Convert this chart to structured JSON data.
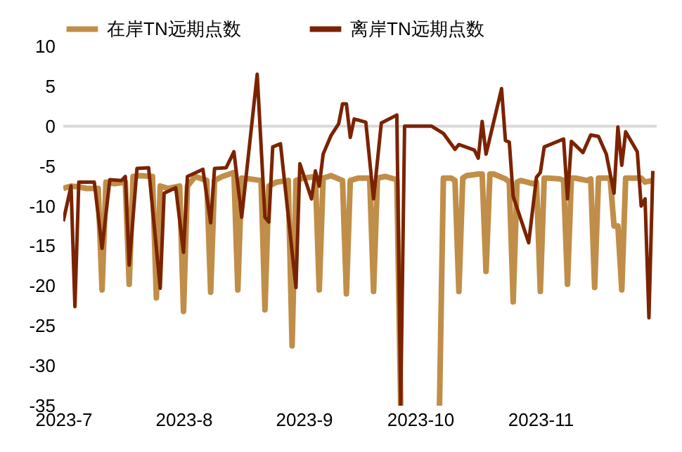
{
  "chart_data": {
    "type": "line",
    "legend": "top",
    "grid": false,
    "ylim": [
      -35,
      10
    ],
    "yticks": [
      10,
      5,
      0,
      -5,
      -10,
      -15,
      -20,
      -25,
      -30,
      -35
    ],
    "xlim": [
      "2023-07-01",
      "2023-12-01"
    ],
    "xticks": [
      {
        "value": "2023-07-01",
        "label": "2023-7"
      },
      {
        "value": "2023-08-01",
        "label": "2023-8"
      },
      {
        "value": "2023-09-01",
        "label": "2023-9"
      },
      {
        "value": "2023-10-01",
        "label": "2023-10"
      },
      {
        "value": "2023-11-01",
        "label": "2023-11"
      }
    ],
    "ref_lines": [
      {
        "axis": "y",
        "value": 0,
        "color": "#d9d9d9"
      }
    ],
    "series": [
      {
        "name": "在岸TN远期点数",
        "color": "#c08e48",
        "x": [
          "2023-07-01",
          "2023-07-03",
          "2023-07-05",
          "2023-07-07",
          "2023-07-10",
          "2023-07-11",
          "2023-07-12",
          "2023-07-14",
          "2023-07-17",
          "2023-07-18",
          "2023-07-19",
          "2023-07-21",
          "2023-07-24",
          "2023-07-25",
          "2023-07-26",
          "2023-07-28",
          "2023-07-31",
          "2023-08-01",
          "2023-08-02",
          "2023-08-04",
          "2023-08-07",
          "2023-08-08",
          "2023-08-09",
          "2023-08-11",
          "2023-08-14",
          "2023-08-15",
          "2023-08-16",
          "2023-08-18",
          "2023-08-21",
          "2023-08-22",
          "2023-08-23",
          "2023-08-25",
          "2023-08-28",
          "2023-08-29",
          "2023-08-30",
          "2023-09-01",
          "2023-09-04",
          "2023-09-05",
          "2023-09-06",
          "2023-09-08",
          "2023-09-11",
          "2023-09-12",
          "2023-09-13",
          "2023-09-15",
          "2023-09-18",
          "2023-09-19",
          "2023-09-20",
          "2023-09-22",
          "2023-09-25",
          "2023-09-26",
          "2023-09-27",
          "2023-10-06",
          "2023-10-07",
          "2023-10-09",
          "2023-10-10",
          "2023-10-11",
          "2023-10-12",
          "2023-10-13",
          "2023-10-16",
          "2023-10-17",
          "2023-10-18",
          "2023-10-19",
          "2023-10-20",
          "2023-10-23",
          "2023-10-24",
          "2023-10-25",
          "2023-10-26",
          "2023-10-27",
          "2023-10-30",
          "2023-10-31",
          "2023-11-01",
          "2023-11-02",
          "2023-11-03",
          "2023-11-06",
          "2023-11-07",
          "2023-11-08",
          "2023-11-09",
          "2023-11-10",
          "2023-11-13",
          "2023-11-14",
          "2023-11-15",
          "2023-11-16",
          "2023-11-17",
          "2023-11-19",
          "2023-11-20",
          "2023-11-21",
          "2023-11-22",
          "2023-11-23",
          "2023-11-27",
          "2023-11-28",
          "2023-11-30"
        ],
        "values": [
          -7.8,
          -7.5,
          -7.6,
          -7.8,
          -7.8,
          -20.5,
          -7,
          -7.2,
          -7,
          -19.8,
          -6.3,
          -6.2,
          -6.3,
          -21.5,
          -7.5,
          -7.8,
          -7.5,
          -23.2,
          -7.5,
          -6.3,
          -6.8,
          -20.8,
          -6.8,
          -6.3,
          -5.8,
          -20.5,
          -6.5,
          -6.6,
          -6.8,
          -23,
          -7.5,
          -7,
          -6.8,
          -27.5,
          -6.8,
          -6.5,
          -6.3,
          -20.5,
          -6.5,
          -6.2,
          -6.8,
          -21,
          -6.8,
          -6.5,
          -6.5,
          -20.7,
          -6.5,
          -6.3,
          -6.7,
          -35,
          null,
          -35,
          -6.5,
          -6.5,
          -6.8,
          -20.7,
          -6.5,
          -6.2,
          -6,
          -6,
          -18.2,
          -6,
          -6,
          -6.6,
          -7,
          -22,
          -7,
          -6.8,
          -7.2,
          -7,
          -20.7,
          -6.5,
          -6.5,
          -6.6,
          -6.8,
          -19.8,
          -6.5,
          -6.5,
          -6.8,
          -6.6,
          -20.2,
          -6.5,
          -6.5,
          -6.5,
          -12.5,
          -12.5,
          -20.5,
          -6.5,
          -6.5,
          -7,
          -6.8
        ]
      },
      {
        "name": "离岸TN远期点数",
        "color": "#7b2300",
        "x": [
          "2023-07-01",
          "2023-07-03",
          "2023-07-04",
          "2023-07-05",
          "2023-07-09",
          "2023-07-11",
          "2023-07-13",
          "2023-07-16",
          "2023-07-17",
          "2023-07-18",
          "2023-07-20",
          "2023-07-23",
          "2023-07-26",
          "2023-07-27",
          "2023-07-30",
          "2023-08-01",
          "2023-08-02",
          "2023-08-06",
          "2023-08-08",
          "2023-08-09",
          "2023-08-12",
          "2023-08-14",
          "2023-08-16",
          "2023-08-20",
          "2023-08-22",
          "2023-08-23",
          "2023-08-24",
          "2023-08-26",
          "2023-08-30",
          "2023-08-31",
          "2023-09-03",
          "2023-09-04",
          "2023-09-05",
          "2023-09-06",
          "2023-09-08",
          "2023-09-10",
          "2023-09-11",
          "2023-09-12",
          "2023-09-13",
          "2023-09-14",
          "2023-09-17",
          "2023-09-19",
          "2023-09-21",
          "2023-09-25",
          "2023-09-26",
          "2023-09-27",
          "2023-10-04",
          "2023-10-07",
          "2023-10-10",
          "2023-10-11",
          "2023-10-15",
          "2023-10-16",
          "2023-10-17",
          "2023-10-18",
          "2023-10-22",
          "2023-10-23",
          "2023-10-24",
          "2023-10-25",
          "2023-10-29",
          "2023-10-31",
          "2023-11-01",
          "2023-11-02",
          "2023-11-07",
          "2023-11-08",
          "2023-11-09",
          "2023-11-12",
          "2023-11-14",
          "2023-11-16",
          "2023-11-18",
          "2023-11-20",
          "2023-11-21",
          "2023-11-22",
          "2023-11-23",
          "2023-11-26",
          "2023-11-27",
          "2023-11-28",
          "2023-11-29",
          "2023-11-30"
        ],
        "values": [
          -11.9,
          -7.5,
          -22.6,
          -7,
          -7,
          -15.3,
          -6.7,
          -6.8,
          -6.3,
          -17.4,
          -5.3,
          -5.2,
          -20.3,
          -8.4,
          -7.7,
          -15.8,
          -6.3,
          -5.4,
          -12.1,
          -5.3,
          -5.2,
          -3.2,
          -11.4,
          6.5,
          -11.4,
          -12,
          -2.6,
          -2.2,
          -20.2,
          -4.7,
          -9.1,
          -5.6,
          -7.5,
          -3.5,
          -1.2,
          0.3,
          2.8,
          2.8,
          -1.4,
          0.9,
          0.5,
          -9.1,
          0.4,
          1.4,
          -35,
          0,
          0,
          -0.9,
          -2.9,
          -2.3,
          -3,
          -4,
          0.6,
          -3.5,
          4.7,
          -1.8,
          -2,
          -8.8,
          -14.6,
          -6.4,
          -5.8,
          -2.6,
          -1.6,
          -9.1,
          -1.9,
          -3.3,
          -1.1,
          -1.3,
          -3.5,
          -8.4,
          -0.1,
          -4.9,
          -0.7,
          -3.2,
          -10,
          -9.1,
          -24,
          -5.6
        ]
      }
    ]
  }
}
